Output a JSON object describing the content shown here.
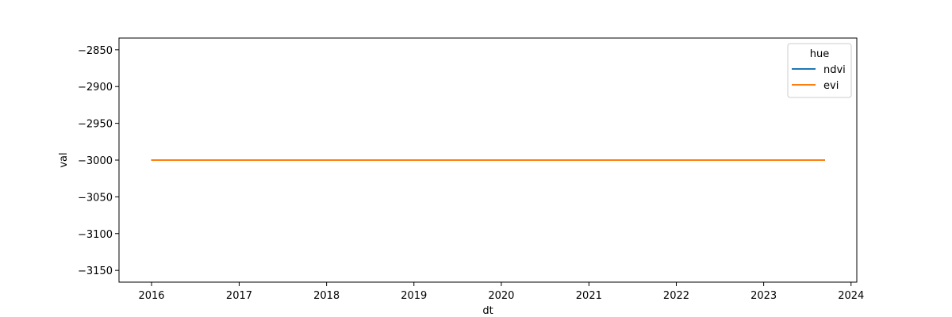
{
  "chart_data": {
    "type": "line",
    "xlabel": "dt",
    "ylabel": "val",
    "xlim": [
      "2015-08-18",
      "2024-01-25"
    ],
    "ylim": [
      -3166,
      -2834
    ],
    "xticks": [
      "2016",
      "2017",
      "2018",
      "2019",
      "2020",
      "2021",
      "2022",
      "2023",
      "2024"
    ],
    "yticks": [
      -2850,
      -2900,
      -2950,
      -3000,
      -3050,
      -3100,
      -3150
    ],
    "ytick_labels": [
      "−2850",
      "−2900",
      "−2950",
      "−3000",
      "−3050",
      "−3100",
      "−3150"
    ],
    "grid": false,
    "legend": {
      "title": "hue",
      "placement": "top-right"
    },
    "series": [
      {
        "name": "ndvi",
        "color": "#1f77b4",
        "x": [
          "2015-12-31",
          "2023-09-14"
        ],
        "y": [
          -3000,
          -3000
        ]
      },
      {
        "name": "evi",
        "color": "#ff7f0e",
        "x": [
          "2015-12-31",
          "2023-09-14"
        ],
        "y": [
          -3000,
          -3000
        ]
      }
    ]
  }
}
